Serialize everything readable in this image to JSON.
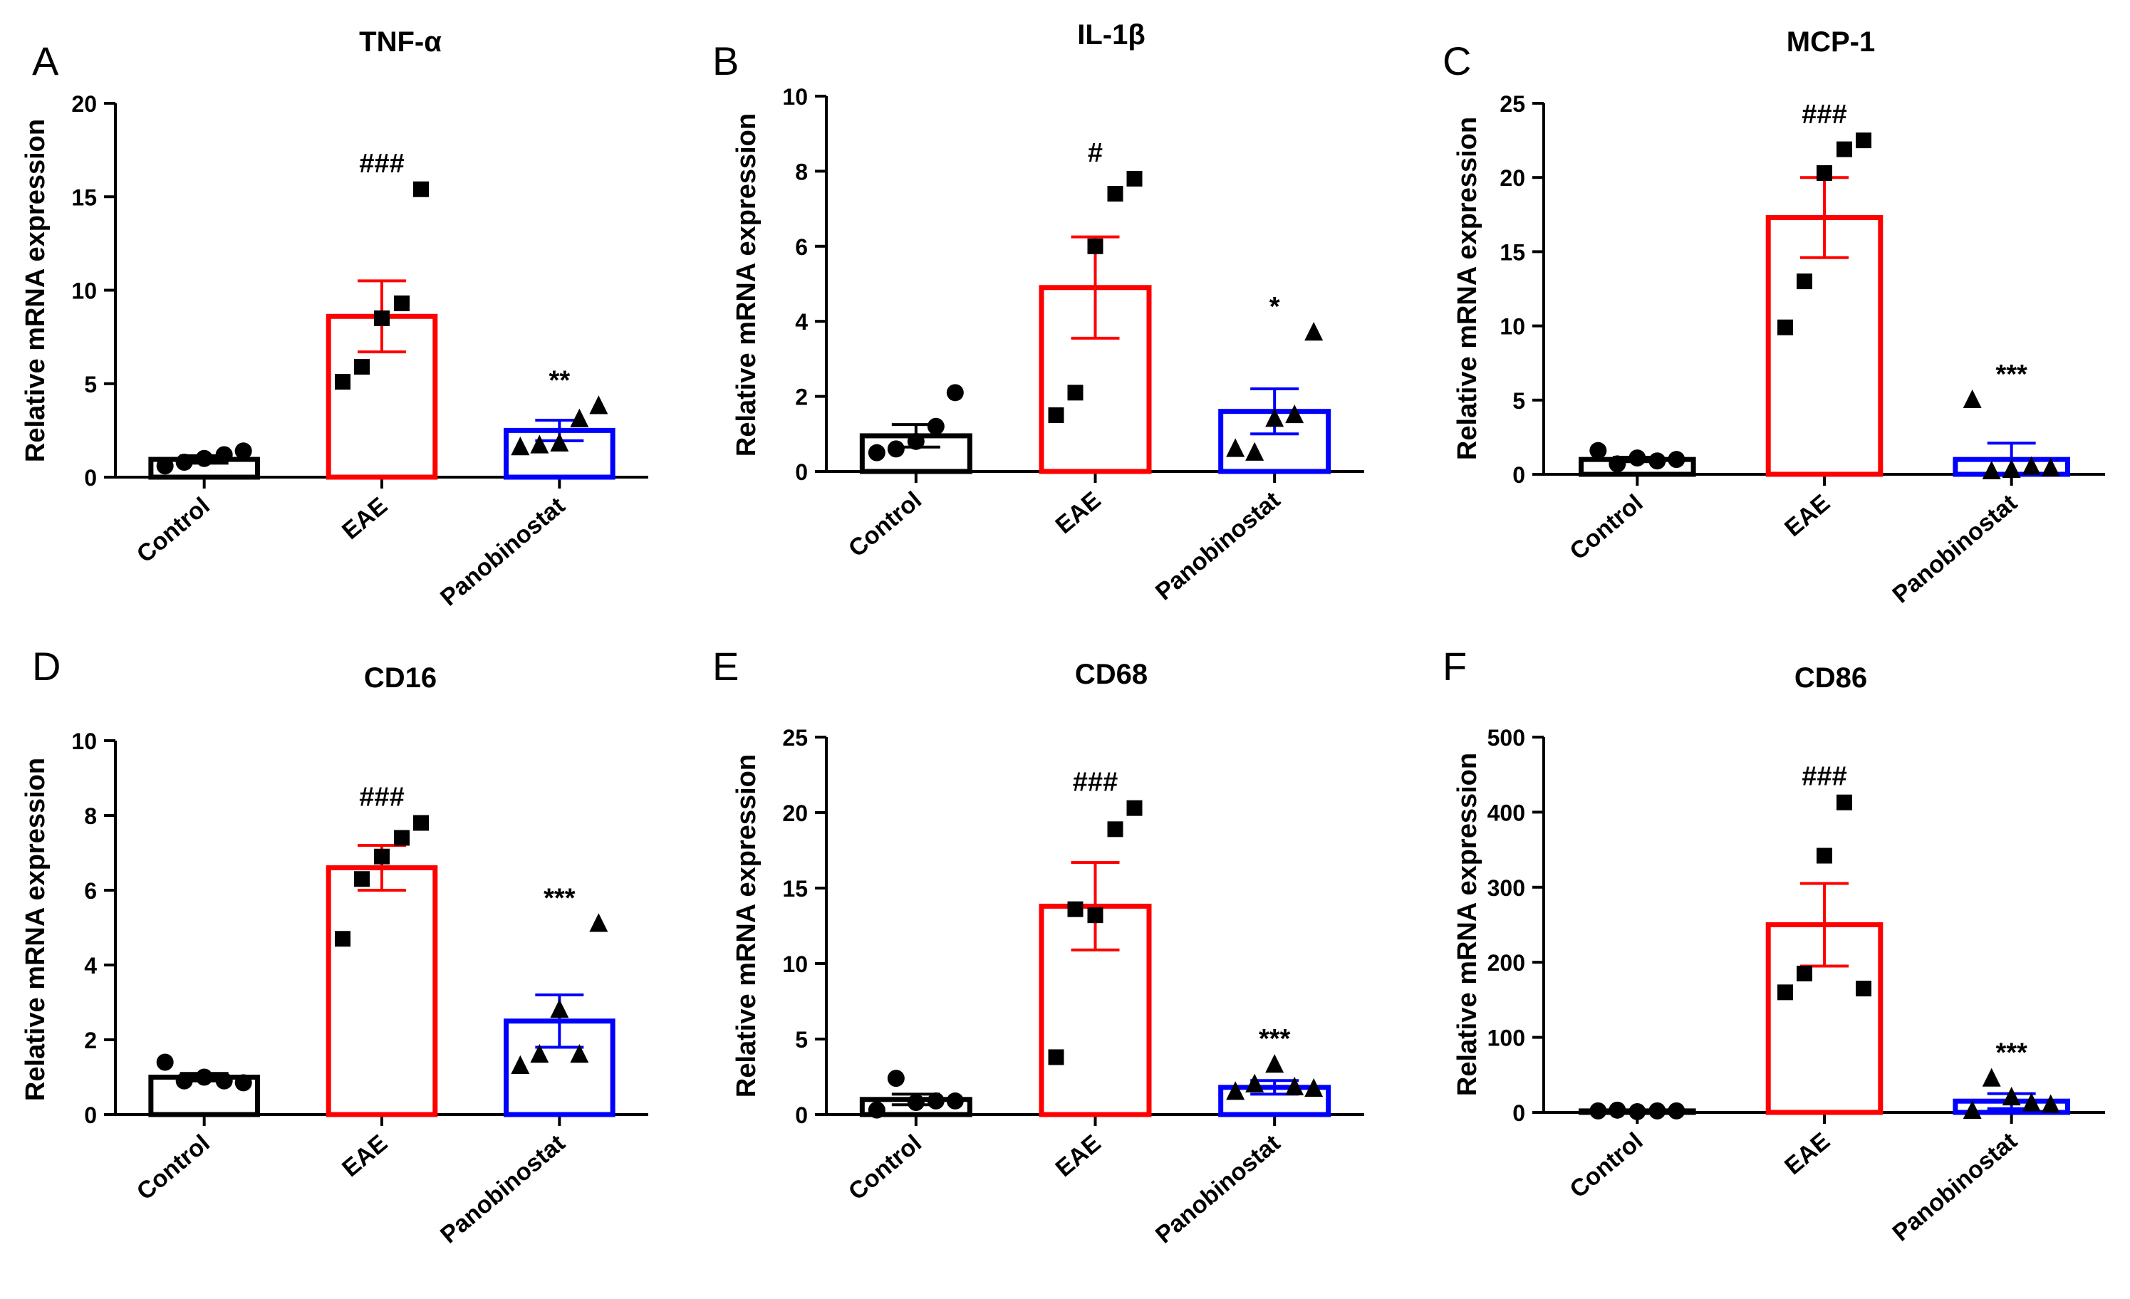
{
  "figure": {
    "categories": [
      "Control",
      "EAE",
      "Panobinostat"
    ],
    "ylabel": "Relative mRNA expression",
    "group_colors": [
      "#000000",
      "#ff0000",
      "#0000ff"
    ],
    "markers": [
      "circle",
      "square",
      "triangle"
    ]
  },
  "chart_data": [
    {
      "type": "bar",
      "panel": "A",
      "title": "TNF-α",
      "ylabel": "Relative mRNA expression",
      "categories": [
        "Control",
        "EAE",
        "Panobinostat"
      ],
      "ylim": [
        0,
        20
      ],
      "yticks": [
        0,
        5,
        10,
        15,
        20
      ],
      "means": [
        0.95,
        8.6,
        2.5
      ],
      "sem": [
        0.2,
        1.9,
        0.55
      ],
      "points": [
        [
          0.6,
          0.8,
          1.0,
          1.2,
          1.4
        ],
        [
          5.1,
          5.9,
          8.5,
          9.3,
          15.4
        ],
        [
          1.6,
          1.7,
          1.8,
          3.1,
          3.8
        ]
      ],
      "annotations": [
        "",
        "###",
        "**"
      ]
    },
    {
      "type": "bar",
      "panel": "B",
      "title": "IL-1β",
      "ylabel": "Relative mRNA expression",
      "categories": [
        "Control",
        "EAE",
        "Panobinostat"
      ],
      "ylim": [
        0,
        10
      ],
      "yticks": [
        0,
        2,
        4,
        6,
        8,
        10
      ],
      "means": [
        0.95,
        4.9,
        1.6
      ],
      "sem": [
        0.3,
        1.35,
        0.6
      ],
      "points": [
        [
          0.5,
          0.6,
          0.8,
          1.2,
          2.1
        ],
        [
          1.5,
          2.1,
          6.0,
          7.4,
          7.8
        ],
        [
          0.6,
          0.5,
          1.4,
          1.5,
          3.7
        ]
      ],
      "annotations": [
        "",
        "#",
        "*"
      ]
    },
    {
      "type": "bar",
      "panel": "C",
      "title": "MCP-1",
      "ylabel": "Relative mRNA expression",
      "categories": [
        "Control",
        "EAE",
        "Panobinostat"
      ],
      "ylim": [
        0,
        25
      ],
      "yticks": [
        0,
        5,
        10,
        15,
        20,
        25
      ],
      "means": [
        1.0,
        17.3,
        1.0
      ],
      "sem": [
        0.15,
        2.7,
        1.1
      ],
      "points": [
        [
          1.6,
          0.7,
          1.1,
          0.9,
          1.0
        ],
        [
          9.9,
          13.0,
          20.3,
          21.9,
          22.5
        ],
        [
          5.0,
          0.2,
          0.3,
          0.5,
          0.4
        ]
      ],
      "annotations": [
        "",
        "###",
        "***"
      ]
    },
    {
      "type": "bar",
      "panel": "D",
      "title": "CD16",
      "ylabel": "Relative mRNA expression",
      "categories": [
        "Control",
        "EAE",
        "Panobinostat"
      ],
      "ylim": [
        0,
        10
      ],
      "yticks": [
        0,
        2,
        4,
        6,
        8,
        10
      ],
      "means": [
        1.0,
        6.6,
        2.5
      ],
      "sem": [
        0.1,
        0.6,
        0.7
      ],
      "points": [
        [
          1.4,
          0.9,
          1.0,
          0.9,
          0.85
        ],
        [
          4.7,
          6.3,
          6.9,
          7.4,
          7.8
        ],
        [
          1.3,
          1.6,
          2.8,
          1.6,
          5.1
        ]
      ],
      "annotations": [
        "",
        "###",
        "***"
      ]
    },
    {
      "type": "bar",
      "panel": "E",
      "title": "CD68",
      "ylabel": "Relative mRNA expression",
      "categories": [
        "Control",
        "EAE",
        "Panobinostat"
      ],
      "ylim": [
        0,
        25
      ],
      "yticks": [
        0,
        5,
        10,
        15,
        20,
        25
      ],
      "means": [
        1.0,
        13.8,
        1.8
      ],
      "sem": [
        0.35,
        2.9,
        0.45
      ],
      "points": [
        [
          0.3,
          2.4,
          0.8,
          0.9,
          0.9
        ],
        [
          3.8,
          13.6,
          13.2,
          18.9,
          20.3
        ],
        [
          1.5,
          2.0,
          3.3,
          1.8,
          1.7
        ]
      ],
      "annotations": [
        "",
        "###",
        "***"
      ]
    },
    {
      "type": "bar",
      "panel": "F",
      "title": "CD86",
      "ylabel": "Relative mRNA expression",
      "categories": [
        "Control",
        "EAE",
        "Panobinostat"
      ],
      "ylim": [
        0,
        500
      ],
      "yticks": [
        0,
        100,
        200,
        300,
        400,
        500
      ],
      "means": [
        2,
        250,
        15
      ],
      "sem": [
        0.5,
        55,
        10
      ],
      "points": [
        [
          2,
          3,
          1,
          2,
          2
        ],
        [
          160,
          185,
          342,
          413,
          165
        ],
        [
          2,
          45,
          20,
          12,
          10
        ]
      ],
      "annotations": [
        "",
        "###",
        "***"
      ]
    }
  ]
}
